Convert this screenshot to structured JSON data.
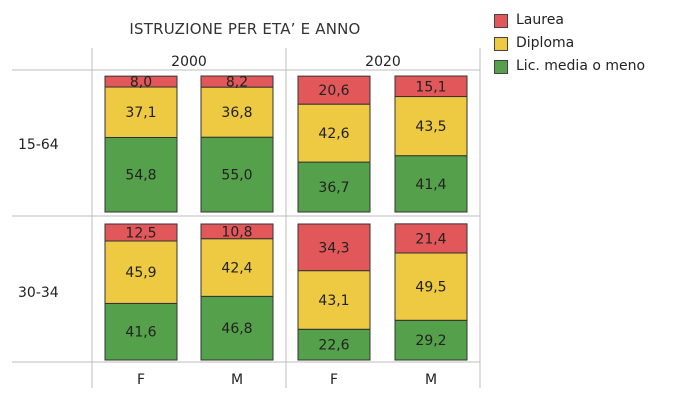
{
  "chart_data": {
    "type": "bar",
    "stacked": true,
    "title": "ISTRUZIONE PER ETA’ E ANNO",
    "column_groups": [
      "2000",
      "2020"
    ],
    "row_groups": [
      "15-64",
      "30-34"
    ],
    "categories": [
      "F",
      "M",
      "F",
      "M"
    ],
    "series": [
      {
        "name": "Lic. media o meno",
        "color": "#55A04A"
      },
      {
        "name": "Diploma",
        "color": "#EECA43"
      },
      {
        "name": "Laurea",
        "color": "#E2585A"
      }
    ],
    "legend_order": [
      2,
      1,
      0
    ],
    "legend_position": "top-right",
    "bars": [
      {
        "row": "15-64",
        "year": "2000",
        "sex": "F",
        "values": [
          54.8,
          37.1,
          8.0
        ],
        "labels": [
          "54,8",
          "37,1",
          "8,0"
        ]
      },
      {
        "row": "15-64",
        "year": "2000",
        "sex": "M",
        "values": [
          55.0,
          36.8,
          8.2
        ],
        "labels": [
          "55,0",
          "36,8",
          "8,2"
        ]
      },
      {
        "row": "15-64",
        "year": "2020",
        "sex": "F",
        "values": [
          36.7,
          42.6,
          20.6
        ],
        "labels": [
          "36,7",
          "42,6",
          "20,6"
        ]
      },
      {
        "row": "15-64",
        "year": "2020",
        "sex": "M",
        "values": [
          41.4,
          43.5,
          15.1
        ],
        "labels": [
          "41,4",
          "43,5",
          "15,1"
        ]
      },
      {
        "row": "30-34",
        "year": "2000",
        "sex": "F",
        "values": [
          41.6,
          45.9,
          12.5
        ],
        "labels": [
          "41,6",
          "45,9",
          "12,5"
        ]
      },
      {
        "row": "30-34",
        "year": "2000",
        "sex": "M",
        "values": [
          46.8,
          42.4,
          10.8
        ],
        "labels": [
          "46,8",
          "42,4",
          "10,8"
        ]
      },
      {
        "row": "30-34",
        "year": "2020",
        "sex": "F",
        "values": [
          22.6,
          43.1,
          34.3
        ],
        "labels": [
          "22,6",
          "43,1",
          "34,3"
        ]
      },
      {
        "row": "30-34",
        "year": "2020",
        "sex": "M",
        "values": [
          29.2,
          49.5,
          21.4
        ],
        "labels": [
          "29,2",
          "49,5",
          "21,4"
        ]
      }
    ],
    "ylim": [
      0,
      100
    ],
    "grid": true
  }
}
